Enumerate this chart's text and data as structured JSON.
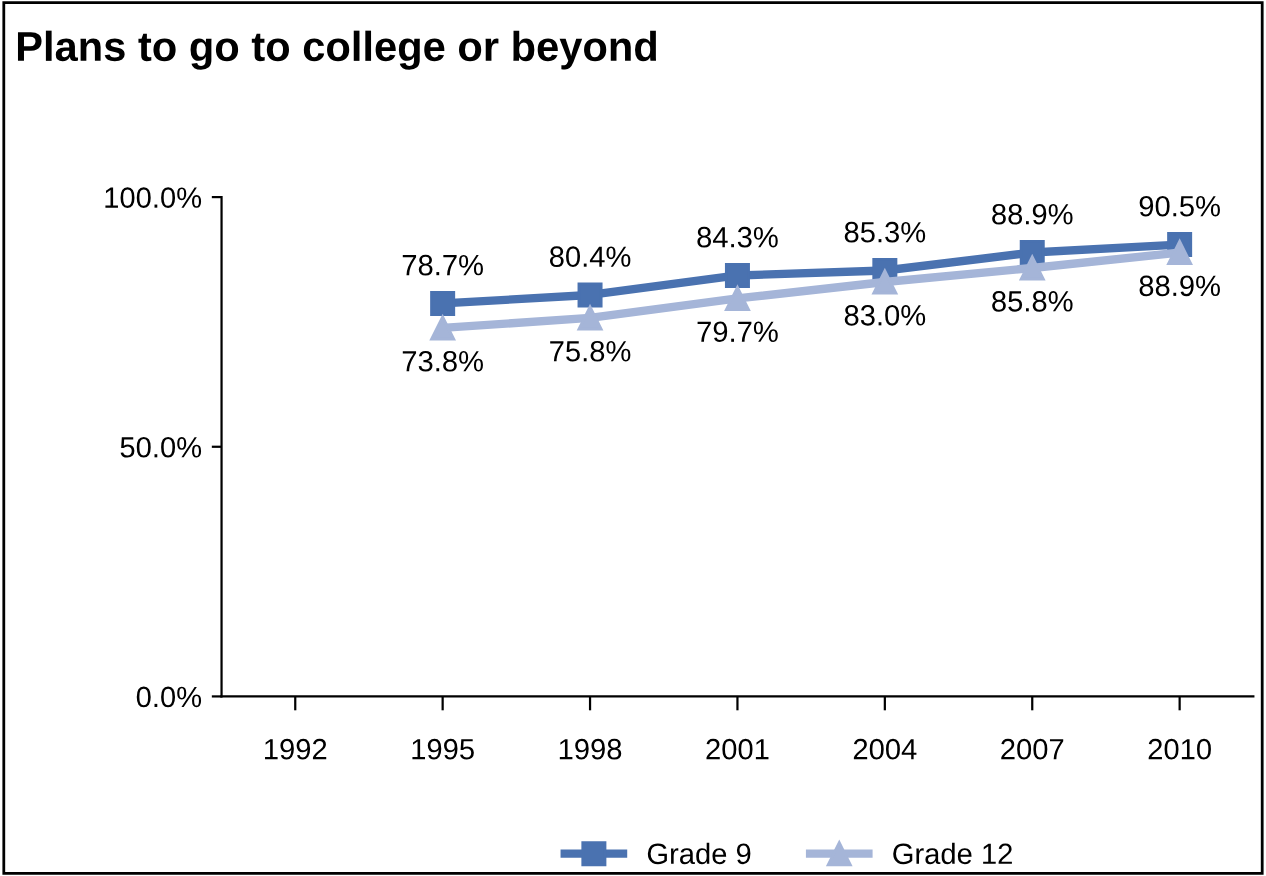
{
  "chart_data": {
    "type": "line",
    "title": "Plans to go to college or beyond",
    "categories": [
      "1992",
      "1995",
      "1998",
      "2001",
      "2004",
      "2007",
      "2010"
    ],
    "series": [
      {
        "name": "Grade 9",
        "color": "#4a72b0",
        "marker": "square",
        "values": [
          null,
          78.7,
          80.4,
          84.3,
          85.3,
          88.9,
          90.5
        ],
        "value_labels": [
          null,
          "78.7%",
          "80.4%",
          "84.3%",
          "85.3%",
          "88.9%",
          "90.5%"
        ]
      },
      {
        "name": "Grade 12",
        "color": "#a5b5d8",
        "marker": "triangle",
        "values": [
          null,
          73.8,
          75.8,
          79.7,
          83.0,
          85.8,
          88.9
        ],
        "value_labels": [
          null,
          "73.8%",
          "75.8%",
          "79.7%",
          "83.0%",
          "85.8%",
          "88.9%"
        ]
      }
    ],
    "ylim": [
      0,
      100
    ],
    "yticks": [
      {
        "value": 0,
        "label": "0.0%"
      },
      {
        "value": 50,
        "label": "50.0%"
      },
      {
        "value": 100,
        "label": "100.0%"
      }
    ],
    "grid": false,
    "legend": "bottom",
    "line_style": "solid"
  }
}
